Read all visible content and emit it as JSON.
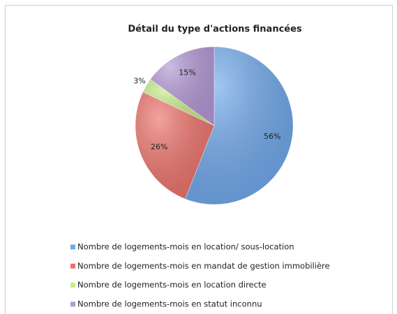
{
  "chart_data": {
    "type": "pie",
    "title": "Détail du type d'actions financées",
    "categories": [
      "Nombre de logements-mois en location/ sous-location",
      "Nombre de logements-mois en mandat de gestion immobilière",
      "Nombre de logements-mois en location directe",
      "Nombre de logements-mois en statut inconnu"
    ],
    "values": [
      56,
      26,
      3,
      15
    ],
    "value_labels": [
      "56%",
      "26%",
      "3%",
      "15%"
    ],
    "colors": [
      "#6fa8ec",
      "#ee716a",
      "#c8ec8a",
      "#b498d6"
    ],
    "legend": "bottom"
  }
}
